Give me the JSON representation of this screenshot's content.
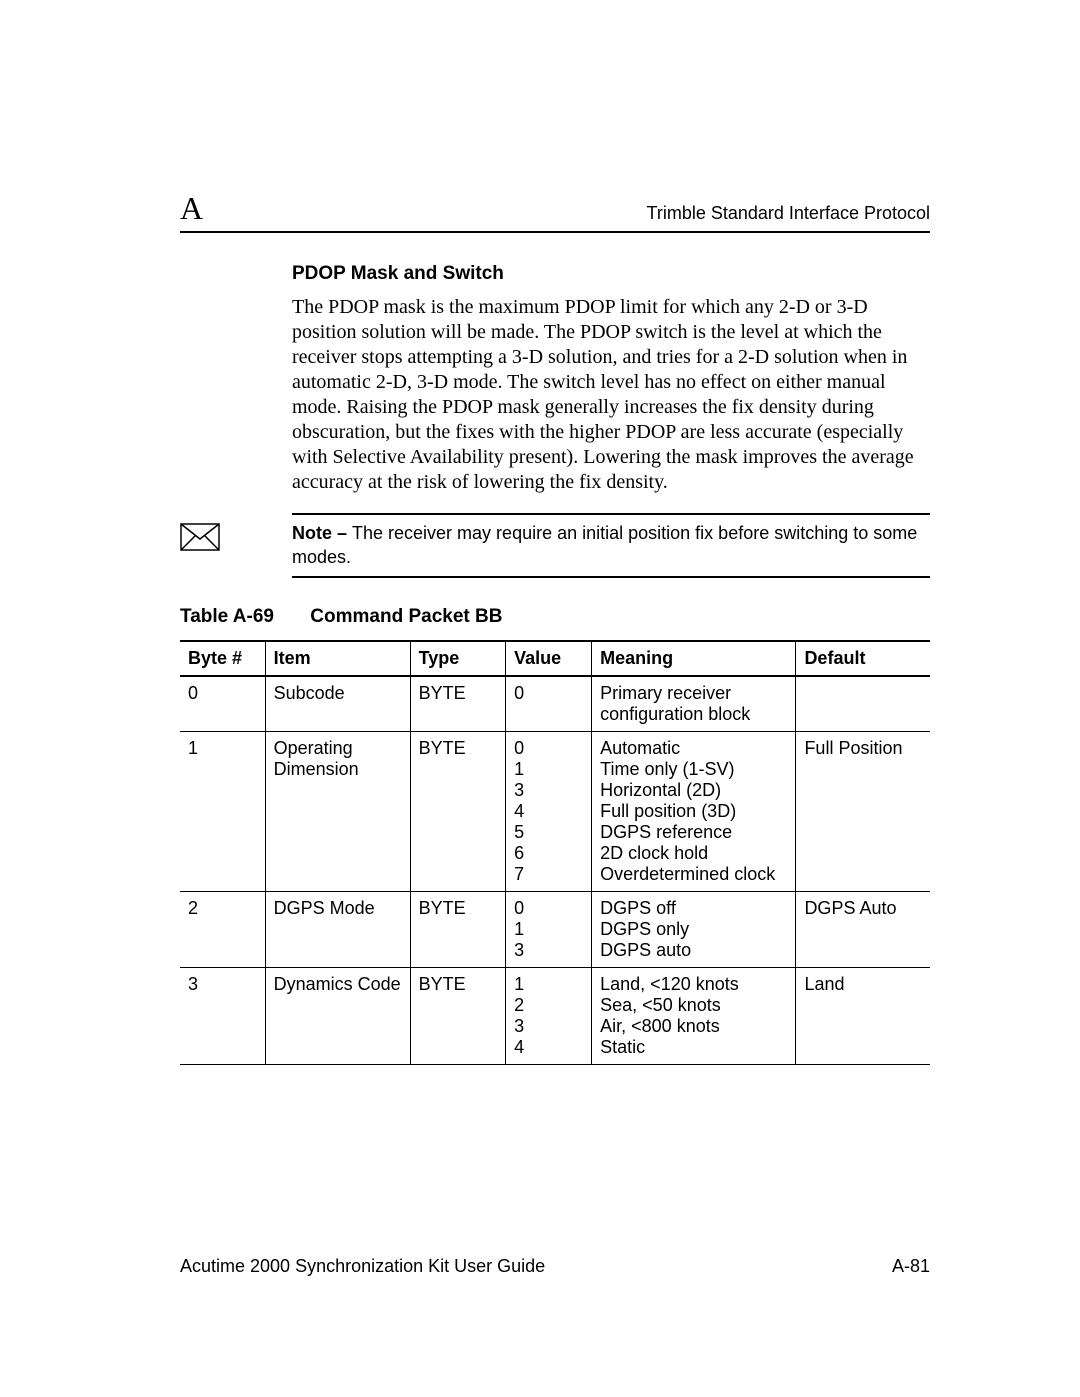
{
  "header": {
    "appendix_letter": "A",
    "right_text": "Trimble Standard Interface Protocol"
  },
  "section": {
    "heading": "PDOP Mask and Switch",
    "paragraph": "The PDOP mask is the maximum PDOP limit for which any 2-D or 3-D position solution will be made. The PDOP switch is the level at which the receiver stops attempting a 3-D solution, and tries for a 2-D solution when in automatic 2-D, 3-D mode. The switch level has no effect on either manual mode. Raising the PDOP mask generally increases the fix density during obscuration, but the fixes with the higher PDOP are less accurate (especially with Selective Availability present). Lowering the mask improves the average accuracy at the risk of lowering the fix density."
  },
  "note": {
    "label": "Note – ",
    "text": "The receiver may require an initial position fix before switching to some modes."
  },
  "table": {
    "caption_num": "Table A-69",
    "caption_title": "Command Packet BB",
    "columns": [
      "Byte #",
      "Item",
      "Type",
      "Value",
      "Meaning",
      "Default"
    ],
    "rows": [
      {
        "byte": "0",
        "item": "Subcode",
        "type": "BYTE",
        "value": "0",
        "meaning": "Primary receiver configuration block",
        "default": ""
      },
      {
        "byte": "1",
        "item": "Operating Dimension",
        "type": "BYTE",
        "value": "0\n1\n3\n4\n5\n6\n7",
        "meaning": "Automatic\nTime only (1-SV)\nHorizontal (2D)\nFull position (3D)\nDGPS reference\n2D clock hold\nOverdetermined clock",
        "default": "Full Position"
      },
      {
        "byte": "2",
        "item": "DGPS Mode",
        "type": "BYTE",
        "value": "0\n1\n3",
        "meaning": "DGPS off\nDGPS only\nDGPS auto",
        "default": "DGPS Auto"
      },
      {
        "byte": "3",
        "item": "Dynamics Code",
        "type": "BYTE",
        "value": "1\n2\n3\n4",
        "meaning": "Land, <120 knots\nSea, <50 knots\nAir, <800 knots\nStatic",
        "default": "Land"
      }
    ]
  },
  "footer": {
    "left": "Acutime 2000 Synchronization Kit User Guide",
    "right": "A-81"
  }
}
